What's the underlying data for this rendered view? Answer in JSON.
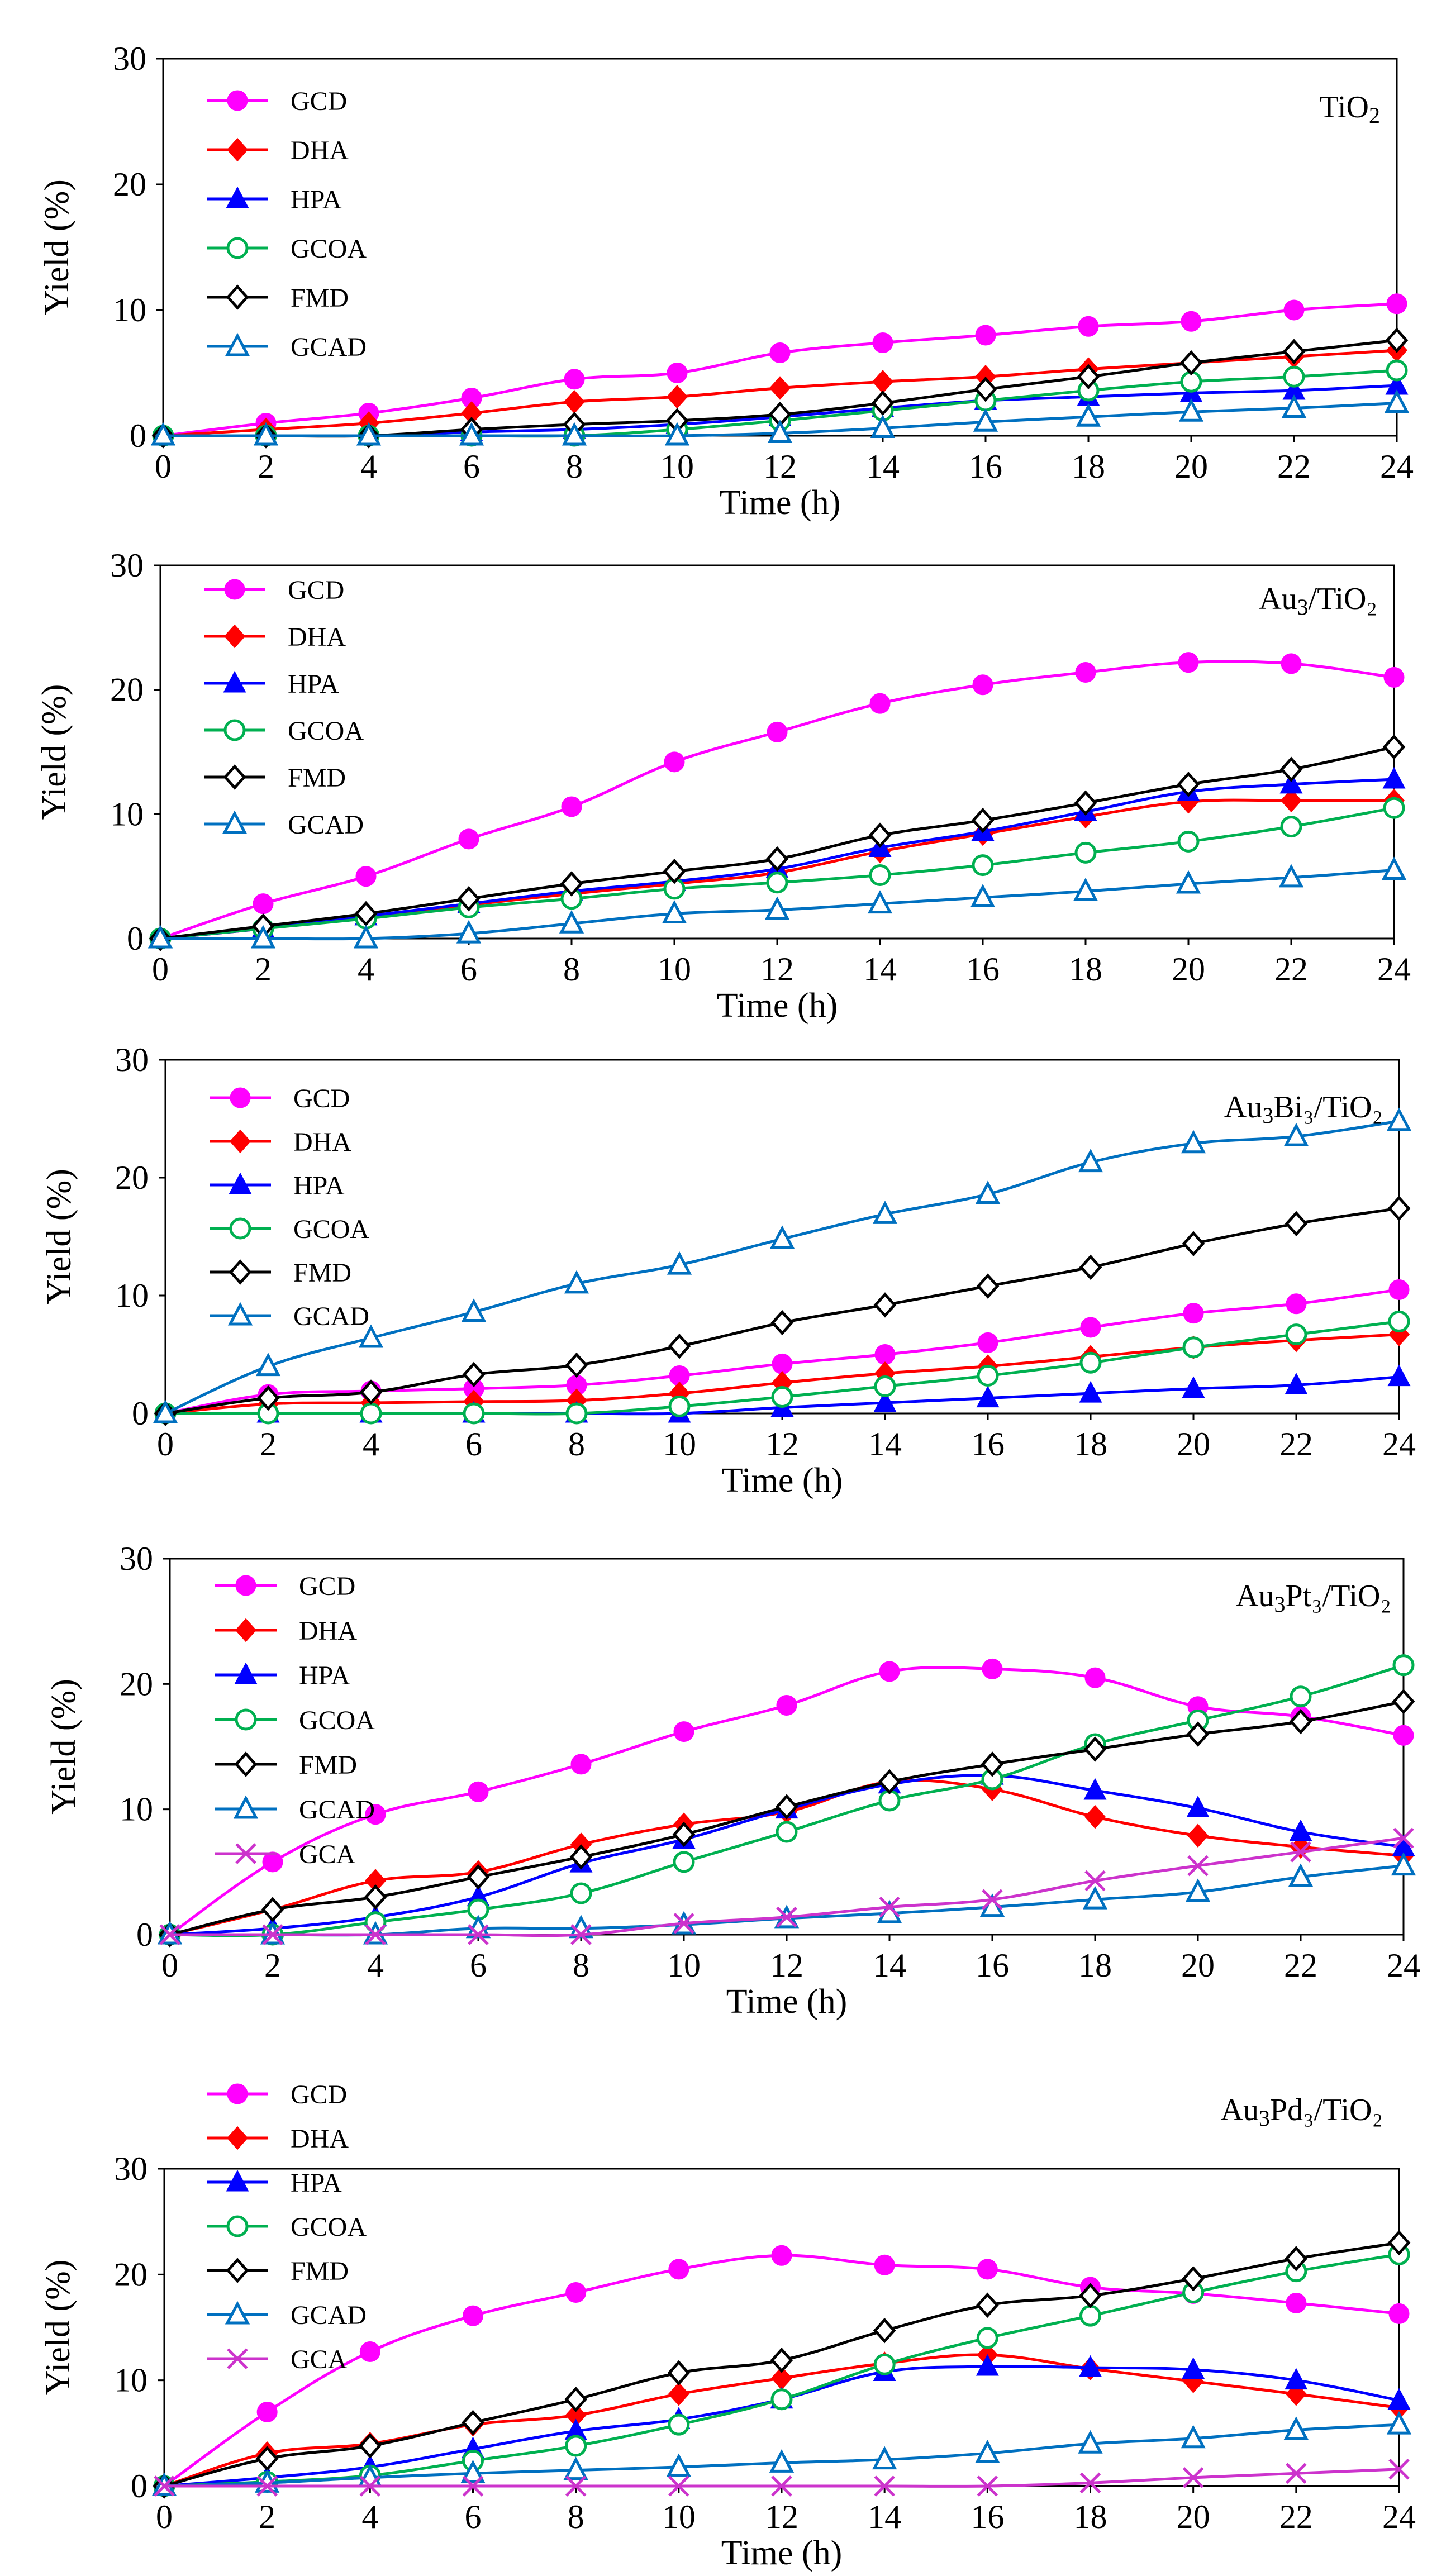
{
  "chart_data": [
    {
      "type": "line",
      "title": "TiO",
      "title_sub": "2",
      "title_after": "",
      "xlabel": "Time (h)",
      "ylabel": "Yield (%)",
      "xlim": [
        0,
        24
      ],
      "ylim": [
        0,
        30
      ],
      "x_ticks": [
        "0",
        "2",
        "4",
        "6",
        "8",
        "10",
        "12",
        "14",
        "16",
        "18",
        "20",
        "22",
        "24"
      ],
      "y_ticks": [
        "0",
        "10",
        "20",
        "30"
      ],
      "x": [
        0,
        2,
        4,
        6,
        8,
        10,
        12,
        14,
        16,
        18,
        20,
        22,
        24
      ],
      "series": [
        {
          "name": "GCD",
          "color": "#ff00ff",
          "marker": "circle-filled",
          "values": [
            0,
            1.0,
            1.8,
            3.0,
            4.5,
            5.0,
            6.6,
            7.4,
            8.0,
            8.7,
            9.1,
            10.0,
            10.5
          ]
        },
        {
          "name": "DHA",
          "color": "#ff0000",
          "marker": "diamond-filled",
          "values": [
            0,
            0.5,
            1.0,
            1.8,
            2.7,
            3.1,
            3.8,
            4.3,
            4.7,
            5.3,
            5.8,
            6.3,
            6.8
          ]
        },
        {
          "name": "HPA",
          "color": "#0000ff",
          "marker": "triangle-filled",
          "values": [
            0,
            0,
            0,
            0.3,
            0.5,
            0.9,
            1.5,
            2.2,
            2.8,
            3.1,
            3.4,
            3.6,
            4.0
          ]
        },
        {
          "name": "GCOA",
          "color": "#00b050",
          "marker": "circle-open",
          "values": [
            0,
            0,
            0,
            0,
            0,
            0.5,
            1.2,
            2.0,
            2.8,
            3.6,
            4.3,
            4.7,
            5.2
          ]
        },
        {
          "name": "FMD",
          "color": "#000000",
          "marker": "diamond-open",
          "values": [
            0,
            0,
            0,
            0.5,
            0.9,
            1.2,
            1.7,
            2.6,
            3.7,
            4.7,
            5.8,
            6.7,
            7.6
          ]
        },
        {
          "name": "GCAD",
          "color": "#0070c0",
          "marker": "triangle-open",
          "values": [
            0,
            0,
            0,
            0,
            0,
            0,
            0.2,
            0.6,
            1.1,
            1.5,
            1.9,
            2.2,
            2.6
          ]
        }
      ]
    },
    {
      "type": "line",
      "title": "Au",
      "title_sub": "3",
      "title_after": "/TiO₂",
      "xlabel": "Time (h)",
      "ylabel": "Yield (%)",
      "xlim": [
        0,
        24
      ],
      "ylim": [
        0,
        30
      ],
      "x_ticks": [
        "0",
        "2",
        "4",
        "6",
        "8",
        "10",
        "12",
        "14",
        "16",
        "18",
        "20",
        "22",
        "24"
      ],
      "y_ticks": [
        "0",
        "10",
        "20",
        "30"
      ],
      "x": [
        0,
        2,
        4,
        6,
        8,
        10,
        12,
        14,
        16,
        18,
        20,
        22,
        24
      ],
      "series": [
        {
          "name": "GCD",
          "color": "#ff00ff",
          "marker": "circle-filled",
          "values": [
            0,
            2.8,
            5.0,
            8.0,
            10.6,
            14.2,
            16.6,
            18.9,
            20.4,
            21.4,
            22.2,
            22.1,
            21.0
          ]
        },
        {
          "name": "DHA",
          "color": "#ff0000",
          "marker": "diamond-filled",
          "values": [
            0,
            0.8,
            1.8,
            2.7,
            3.6,
            4.4,
            5.3,
            7.0,
            8.4,
            9.8,
            11.0,
            11.1,
            11.1
          ]
        },
        {
          "name": "HPA",
          "color": "#0000ff",
          "marker": "triangle-filled",
          "values": [
            0,
            0.8,
            1.8,
            2.8,
            3.8,
            4.6,
            5.6,
            7.3,
            8.6,
            10.2,
            11.8,
            12.4,
            12.8
          ]
        },
        {
          "name": "GCOA",
          "color": "#00b050",
          "marker": "circle-open",
          "values": [
            0,
            0.8,
            1.6,
            2.5,
            3.2,
            4.0,
            4.5,
            5.1,
            5.9,
            6.9,
            7.8,
            9.0,
            10.5
          ]
        },
        {
          "name": "FMD",
          "color": "#000000",
          "marker": "diamond-open",
          "values": [
            0,
            1.0,
            2.0,
            3.2,
            4.4,
            5.4,
            6.4,
            8.3,
            9.5,
            10.9,
            12.4,
            13.6,
            15.4
          ]
        },
        {
          "name": "GCAD",
          "color": "#0070c0",
          "marker": "triangle-open",
          "values": [
            0,
            0,
            0,
            0.4,
            1.2,
            2.0,
            2.3,
            2.8,
            3.3,
            3.8,
            4.4,
            4.9,
            5.5
          ]
        }
      ]
    },
    {
      "type": "line",
      "title": "Au",
      "title_sub": "3",
      "title_after": "Bi₃/TiO₂",
      "xlabel": "Time (h)",
      "ylabel": "Yield (%)",
      "xlim": [
        0,
        24
      ],
      "ylim": [
        0,
        30
      ],
      "x_ticks": [
        "0",
        "2",
        "4",
        "6",
        "8",
        "10",
        "12",
        "14",
        "16",
        "18",
        "20",
        "22",
        "24"
      ],
      "y_ticks": [
        "0",
        "10",
        "20",
        "30"
      ],
      "x": [
        0,
        2,
        4,
        6,
        8,
        10,
        12,
        14,
        16,
        18,
        20,
        22,
        24
      ],
      "series": [
        {
          "name": "GCD",
          "color": "#ff00ff",
          "marker": "circle-filled",
          "values": [
            0,
            1.6,
            1.9,
            2.1,
            2.4,
            3.2,
            4.2,
            5.0,
            6.0,
            7.3,
            8.5,
            9.3,
            10.5
          ]
        },
        {
          "name": "DHA",
          "color": "#ff0000",
          "marker": "diamond-filled",
          "values": [
            0,
            0.8,
            0.9,
            1.0,
            1.1,
            1.7,
            2.6,
            3.4,
            4.0,
            4.8,
            5.6,
            6.2,
            6.7
          ]
        },
        {
          "name": "HPA",
          "color": "#0000ff",
          "marker": "triangle-filled",
          "values": [
            0,
            0,
            0,
            0,
            0,
            0,
            0.5,
            0.9,
            1.3,
            1.7,
            2.1,
            2.4,
            3.1
          ]
        },
        {
          "name": "GCOA",
          "color": "#00b050",
          "marker": "circle-open",
          "values": [
            0,
            0,
            0,
            0,
            0,
            0.6,
            1.4,
            2.3,
            3.2,
            4.3,
            5.6,
            6.7,
            7.8
          ]
        },
        {
          "name": "FMD",
          "color": "#000000",
          "marker": "diamond-open",
          "values": [
            0,
            1.3,
            1.8,
            3.3,
            4.1,
            5.7,
            7.7,
            9.2,
            10.8,
            12.4,
            14.4,
            16.1,
            17.4
          ]
        },
        {
          "name": "GCAD",
          "color": "#0070c0",
          "marker": "triangle-open",
          "values": [
            0,
            4.0,
            6.4,
            8.6,
            11.0,
            12.6,
            14.8,
            16.9,
            18.6,
            21.3,
            22.9,
            23.5,
            24.8
          ]
        }
      ]
    },
    {
      "type": "line",
      "title": "Au",
      "title_sub": "3",
      "title_after": "Pt₃/TiO₂",
      "xlabel": "Time (h)",
      "ylabel": "Yield (%)",
      "xlim": [
        0,
        24
      ],
      "ylim": [
        0,
        30
      ],
      "x_ticks": [
        "0",
        "2",
        "4",
        "6",
        "8",
        "10",
        "12",
        "14",
        "16",
        "18",
        "20",
        "22",
        "24"
      ],
      "y_ticks": [
        "0",
        "10",
        "20",
        "30"
      ],
      "x": [
        0,
        2,
        4,
        6,
        8,
        10,
        12,
        14,
        16,
        18,
        20,
        22,
        24
      ],
      "series": [
        {
          "name": "GCD",
          "color": "#ff00ff",
          "marker": "circle-filled",
          "values": [
            0,
            5.8,
            9.6,
            11.4,
            13.6,
            16.2,
            18.3,
            21.0,
            21.2,
            20.5,
            18.2,
            17.4,
            15.9
          ]
        },
        {
          "name": "DHA",
          "color": "#ff0000",
          "marker": "diamond-filled",
          "values": [
            0,
            2.0,
            4.3,
            5.0,
            7.2,
            8.8,
            9.8,
            12.2,
            11.6,
            9.4,
            7.9,
            7.0,
            6.3
          ]
        },
        {
          "name": "HPA",
          "color": "#0000ff",
          "marker": "triangle-filled",
          "values": [
            0,
            0.5,
            1.4,
            3.0,
            5.7,
            7.6,
            10.0,
            12.0,
            12.7,
            11.5,
            10.1,
            8.2,
            7.0
          ]
        },
        {
          "name": "GCOA",
          "color": "#00b050",
          "marker": "circle-open",
          "values": [
            0,
            0,
            1.0,
            2.0,
            3.3,
            5.8,
            8.2,
            10.7,
            12.4,
            15.2,
            17.1,
            19.0,
            21.5
          ]
        },
        {
          "name": "FMD",
          "color": "#000000",
          "marker": "diamond-open",
          "values": [
            0,
            2.0,
            3.0,
            4.6,
            6.2,
            8.0,
            10.2,
            12.2,
            13.6,
            14.8,
            16.0,
            17.0,
            18.6
          ]
        },
        {
          "name": "GCAD",
          "color": "#0070c0",
          "marker": "triangle-open",
          "values": [
            0,
            0,
            0,
            0.5,
            0.5,
            0.8,
            1.3,
            1.7,
            2.2,
            2.8,
            3.4,
            4.6,
            5.5
          ]
        },
        {
          "name": "GCA",
          "color": "#cc33cc",
          "marker": "x",
          "values": [
            0,
            0,
            0,
            0,
            0,
            0.9,
            1.4,
            2.2,
            2.8,
            4.3,
            5.5,
            6.6,
            7.7
          ]
        }
      ]
    },
    {
      "type": "line",
      "title": "Au",
      "title_sub": "3",
      "title_after": "Pd₃/TiO₂",
      "xlabel": "Time (h)",
      "ylabel": "Yield (%)",
      "xlim": [
        0,
        24
      ],
      "ylim": [
        0,
        30
      ],
      "x_ticks": [
        "0",
        "2",
        "4",
        "6",
        "8",
        "10",
        "12",
        "14",
        "16",
        "18",
        "20",
        "22",
        "24"
      ],
      "y_ticks": [
        "0",
        "10",
        "20",
        "30"
      ],
      "x": [
        0,
        2,
        4,
        6,
        8,
        10,
        12,
        14,
        16,
        18,
        20,
        22,
        24
      ],
      "series": [
        {
          "name": "GCD",
          "color": "#ff00ff",
          "marker": "circle-filled",
          "values": [
            0,
            7.0,
            12.7,
            16.1,
            18.3,
            20.5,
            21.8,
            20.9,
            20.5,
            18.8,
            18.2,
            17.3,
            16.3
          ]
        },
        {
          "name": "DHA",
          "color": "#ff0000",
          "marker": "diamond-filled",
          "values": [
            0,
            3.1,
            4.0,
            5.8,
            6.7,
            8.7,
            10.2,
            11.6,
            12.4,
            11.1,
            9.9,
            8.7,
            7.4
          ]
        },
        {
          "name": "HPA",
          "color": "#0000ff",
          "marker": "triangle-filled",
          "values": [
            0,
            0.8,
            1.8,
            3.5,
            5.2,
            6.3,
            8.2,
            10.8,
            11.3,
            11.2,
            11.0,
            10.0,
            8.1
          ]
        },
        {
          "name": "GCOA",
          "color": "#00b050",
          "marker": "circle-open",
          "values": [
            0,
            0.4,
            1.0,
            2.4,
            3.8,
            5.8,
            8.2,
            11.5,
            14.0,
            16.1,
            18.3,
            20.3,
            21.9
          ]
        },
        {
          "name": "FMD",
          "color": "#000000",
          "marker": "diamond-open",
          "values": [
            0,
            2.6,
            3.8,
            6.0,
            8.2,
            10.7,
            11.9,
            14.7,
            17.1,
            18.0,
            19.6,
            21.5,
            23.0
          ]
        },
        {
          "name": "GCAD",
          "color": "#0070c0",
          "marker": "triangle-open",
          "values": [
            0,
            0.3,
            0.8,
            1.2,
            1.5,
            1.8,
            2.2,
            2.5,
            3.1,
            4.0,
            4.5,
            5.3,
            5.8
          ]
        },
        {
          "name": "GCA",
          "color": "#cc33cc",
          "marker": "x",
          "values": [
            0,
            0,
            0,
            0,
            0,
            0,
            0,
            0,
            0,
            0.3,
            0.8,
            1.2,
            1.6
          ]
        }
      ]
    }
  ]
}
